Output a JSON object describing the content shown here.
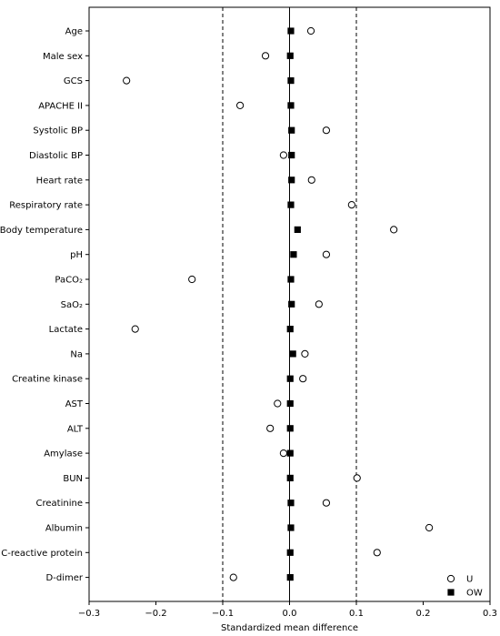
{
  "chart_data": {
    "type": "scatter",
    "title": "",
    "xlabel": "Standardized mean difference",
    "ylabel": "",
    "xlim": [
      -0.3,
      0.3
    ],
    "xticks": [
      "−0.3",
      "−0.2",
      "−0.1",
      "0.0",
      "0.1",
      "0.2",
      "0.3"
    ],
    "xtick_values": [
      -0.3,
      -0.2,
      -0.1,
      0.0,
      0.1,
      0.2,
      0.3
    ],
    "reference_lines": [
      {
        "x": 0.0,
        "style": "solid"
      },
      {
        "x": -0.1,
        "style": "dashed"
      },
      {
        "x": 0.1,
        "style": "dashed"
      }
    ],
    "grid": false,
    "legend_position": "bottom-right",
    "categories": [
      "Age",
      "Male sex",
      "GCS",
      "APACHE II",
      "Systolic BP",
      "Diastolic BP",
      "Heart rate",
      "Respiratory rate",
      "Body temperature",
      "pH",
      "PaCO₂",
      "SaO₂",
      "Lactate",
      "Na",
      "Creatine kinase",
      "AST",
      "ALT",
      "Amylase",
      "BUN",
      "Creatinine",
      "Albumin",
      "C-reactive protein",
      "D-dimer"
    ],
    "series": [
      {
        "name": "U",
        "marker": "open-circle",
        "values": [
          0.032,
          -0.036,
          -0.244,
          -0.074,
          0.055,
          -0.009,
          0.033,
          0.093,
          0.156,
          0.055,
          -0.146,
          0.044,
          -0.231,
          0.023,
          0.02,
          -0.018,
          -0.029,
          -0.009,
          0.101,
          0.055,
          0.209,
          0.131,
          -0.084
        ]
      },
      {
        "name": "OW",
        "marker": "filled-square",
        "values": [
          0.002,
          0.001,
          0.002,
          0.002,
          0.003,
          0.003,
          0.003,
          0.002,
          0.012,
          0.006,
          0.002,
          0.003,
          0.001,
          0.005,
          0.001,
          0.001,
          0.001,
          0.001,
          0.001,
          0.002,
          0.002,
          0.001,
          0.001
        ]
      }
    ]
  }
}
